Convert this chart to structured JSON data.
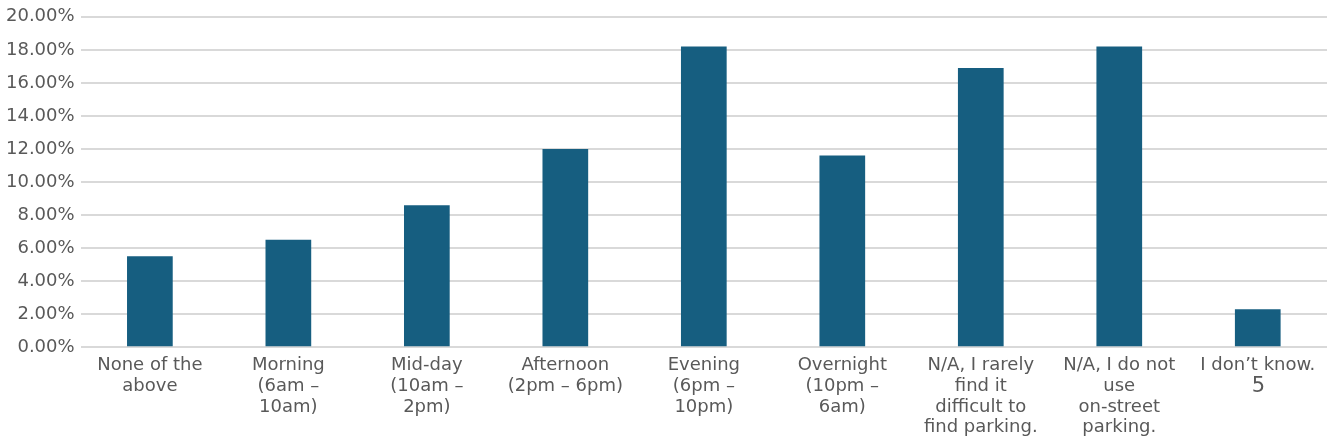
{
  "chart_data": {
    "type": "bar",
    "categories": [
      "None of the above",
      "Morning (6am – 10am)",
      "Mid-day (10am – 2pm)",
      "Afternoon (2pm – 6pm)",
      "Evening (6pm – 10pm)",
      "Overnight (10pm – 6am)",
      "N/A, I rarely find it difficult to find parking.",
      "N/A, I do not use on-street parking.",
      "I don’t know."
    ],
    "values": [
      5.5,
      6.5,
      8.6,
      12.0,
      18.2,
      11.6,
      16.9,
      18.2,
      2.3
    ],
    "color": "#165e80",
    "ylim": [
      0,
      20
    ],
    "yticks": [
      {
        "value": 0,
        "label": "0.00%"
      },
      {
        "value": 2,
        "label": "2.00%"
      },
      {
        "value": 4,
        "label": "4.00%"
      },
      {
        "value": 6,
        "label": "6.00%"
      },
      {
        "value": 8,
        "label": "8.00%"
      },
      {
        "value": 10,
        "label": "10.00%"
      },
      {
        "value": 12,
        "label": "12.00%"
      },
      {
        "value": 14,
        "label": "14.00%"
      },
      {
        "value": 16,
        "label": "16.00%"
      },
      {
        "value": 18,
        "label": "18.00%"
      },
      {
        "value": 20,
        "label": "20.00%"
      }
    ],
    "grid": "y",
    "annotations": [
      "5"
    ]
  }
}
